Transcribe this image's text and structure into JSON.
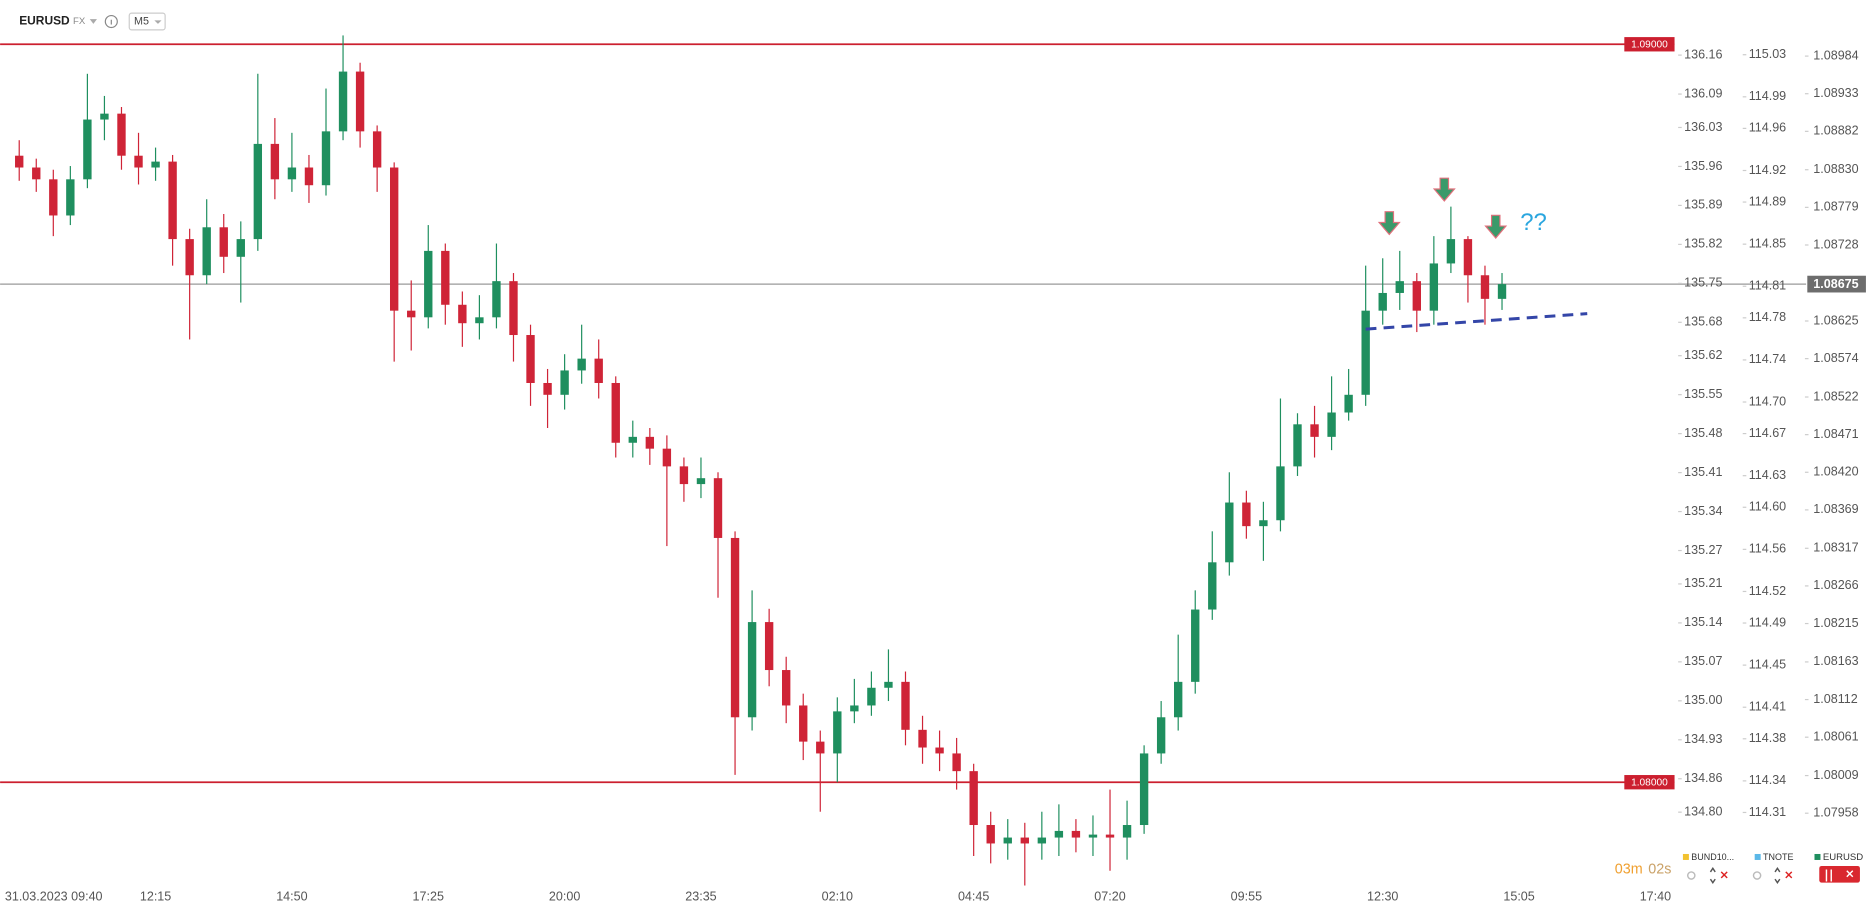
{
  "header": {
    "symbol": "EURUSD",
    "market": "FX",
    "timeframe": "M5"
  },
  "chart_data": {
    "type": "candlestick",
    "categories": [
      "31.03.2023 09:40",
      null,
      null,
      null,
      null,
      null,
      null,
      null,
      "12:15",
      null,
      null,
      null,
      null,
      null,
      null,
      null,
      "14:50",
      null,
      null,
      null,
      null,
      null,
      null,
      null,
      "17:25",
      null,
      null,
      null,
      null,
      null,
      null,
      null,
      "20:00",
      null,
      null,
      null,
      null,
      null,
      null,
      null,
      "23:35",
      null,
      null,
      null,
      null,
      null,
      null,
      null,
      "02:10",
      null,
      null,
      null,
      null,
      null,
      null,
      null,
      "04:45",
      null,
      null,
      null,
      null,
      null,
      null,
      null,
      "07:20",
      null,
      null,
      null,
      null,
      null,
      null,
      null,
      "09:55",
      null,
      null,
      null,
      null,
      null,
      null,
      null,
      "12:30",
      null,
      null,
      null,
      null,
      null,
      null,
      null,
      "15:05",
      null,
      null,
      null,
      null,
      null,
      null,
      null,
      "17:40"
    ],
    "series": [
      {
        "name": "EURUSD",
        "color": "#1f8f5f",
        "up_color": "#1f8f5f",
        "down_color": "#cf2437",
        "open": [
          1.08849,
          1.08833,
          1.08817,
          1.08768,
          1.08817,
          1.08898,
          1.08906,
          1.08849,
          1.08833,
          1.08841,
          1.08736,
          1.08687,
          1.08752,
          1.08712,
          1.08736,
          1.08865,
          1.08817,
          1.08833,
          1.08809,
          1.08882,
          1.08963,
          1.08882,
          1.08833,
          1.08639,
          1.0863,
          1.0872,
          1.08647,
          1.08622,
          1.0863,
          1.08679,
          1.08606,
          1.08541,
          1.08525,
          1.08558,
          1.08574,
          1.08541,
          1.0846,
          1.08468,
          1.08452,
          1.08428,
          1.08404,
          1.08412,
          1.08331,
          1.08088,
          1.08217,
          1.08152,
          1.08104,
          1.08055,
          1.08039,
          1.08096,
          1.08104,
          1.08128,
          1.08136,
          1.08071,
          1.08047,
          1.08039,
          1.08015,
          1.07942,
          1.07917,
          1.07925,
          1.07917,
          1.07925,
          1.07934,
          1.07925,
          1.07929,
          1.07925,
          1.07942,
          1.08039,
          1.08088,
          1.08136,
          1.08234,
          1.08298,
          1.08379,
          1.08347,
          1.08355,
          1.08428,
          1.08485,
          1.08468,
          1.08501,
          1.08525,
          1.08639,
          1.08663,
          1.08679,
          1.08639,
          1.08703,
          1.08736,
          1.08687,
          1.08655,
          null,
          null,
          null,
          null,
          null,
          null,
          null,
          null,
          null
        ],
        "high": [
          1.0887,
          1.08845,
          1.0883,
          1.08835,
          1.0896,
          1.0893,
          1.08915,
          1.0888,
          1.0886,
          1.0885,
          1.0875,
          1.0879,
          1.0877,
          1.0876,
          1.0896,
          1.089,
          1.0888,
          1.0885,
          1.0894,
          1.09012,
          1.08975,
          1.0889,
          1.0884,
          1.0868,
          1.08755,
          1.0873,
          1.08665,
          1.0866,
          1.0873,
          1.0869,
          1.0862,
          1.0856,
          1.0858,
          1.0862,
          1.086,
          1.0855,
          1.0849,
          1.0848,
          1.0847,
          1.0844,
          1.0844,
          1.0842,
          1.0834,
          1.0826,
          1.08235,
          1.0817,
          1.0812,
          1.0807,
          1.08115,
          1.0814,
          1.0815,
          1.0818,
          1.0815,
          1.0809,
          1.0807,
          1.0806,
          1.08025,
          1.0796,
          1.0795,
          1.07945,
          1.0796,
          1.0797,
          1.0795,
          1.07955,
          1.0799,
          1.07975,
          1.0805,
          1.0811,
          1.082,
          1.0826,
          1.0834,
          1.0842,
          1.08395,
          1.0838,
          1.0852,
          1.085,
          1.0851,
          1.0855,
          1.0856,
          1.087,
          1.0871,
          1.0872,
          1.0869,
          1.0874,
          1.0878,
          1.0874,
          1.087,
          1.0869,
          null,
          null,
          null,
          null,
          null,
          null,
          null,
          null,
          null
        ],
        "low": [
          1.08815,
          1.088,
          1.0874,
          1.08755,
          1.08805,
          1.0887,
          1.0883,
          1.0881,
          1.08815,
          1.087,
          1.086,
          1.08675,
          1.0869,
          1.0865,
          1.0872,
          1.0879,
          1.088,
          1.08785,
          1.08795,
          1.0887,
          1.0886,
          1.088,
          1.0857,
          1.08585,
          1.08615,
          1.0862,
          1.0859,
          1.086,
          1.08615,
          1.0857,
          1.0851,
          1.0848,
          1.08505,
          1.0854,
          1.0852,
          1.0844,
          1.0844,
          1.0843,
          1.0832,
          1.0838,
          1.08385,
          1.0825,
          1.0801,
          1.0807,
          1.0813,
          1.0808,
          1.0803,
          1.0796,
          1.08,
          1.0808,
          1.0809,
          1.0811,
          1.0805,
          1.08025,
          1.08015,
          1.0799,
          1.079,
          1.0789,
          1.07895,
          1.0786,
          1.07895,
          1.079,
          1.07905,
          1.079,
          1.0788,
          1.07895,
          1.0793,
          1.08025,
          1.0807,
          1.0812,
          1.0822,
          1.0828,
          1.0833,
          1.083,
          1.0834,
          1.08415,
          1.0844,
          1.0845,
          1.0849,
          1.0851,
          1.0862,
          1.0864,
          1.0861,
          1.0862,
          1.0869,
          1.0865,
          1.0862,
          1.0864,
          null,
          null,
          null,
          null,
          null,
          null,
          null,
          null,
          null
        ],
        "close": [
          1.08833,
          1.08817,
          1.08768,
          1.08817,
          1.08898,
          1.08906,
          1.08849,
          1.08833,
          1.08841,
          1.08736,
          1.08687,
          1.08752,
          1.08712,
          1.08736,
          1.08865,
          1.08817,
          1.08833,
          1.08809,
          1.08882,
          1.08963,
          1.08882,
          1.08833,
          1.08639,
          1.0863,
          1.0872,
          1.08647,
          1.08622,
          1.0863,
          1.08679,
          1.08606,
          1.08541,
          1.08525,
          1.08558,
          1.08574,
          1.08541,
          1.0846,
          1.08468,
          1.08452,
          1.08428,
          1.08404,
          1.08412,
          1.08331,
          1.08088,
          1.08217,
          1.08152,
          1.08104,
          1.08055,
          1.08039,
          1.08096,
          1.08104,
          1.08128,
          1.08136,
          1.08071,
          1.08047,
          1.08039,
          1.08015,
          1.07942,
          1.07917,
          1.07925,
          1.07917,
          1.07925,
          1.07934,
          1.07925,
          1.07929,
          1.07925,
          1.07942,
          1.08039,
          1.08088,
          1.08136,
          1.08234,
          1.08298,
          1.08379,
          1.08347,
          1.08355,
          1.08428,
          1.08485,
          1.08468,
          1.08501,
          1.08525,
          1.08639,
          1.08663,
          1.08679,
          1.08639,
          1.08703,
          1.08736,
          1.08687,
          1.08655,
          1.08675,
          null,
          null,
          null,
          null,
          null,
          null,
          null,
          null,
          null
        ]
      }
    ],
    "ylim": [
      1.078606,
      1.0906
    ],
    "yticks": [
      1.08984,
      1.08933,
      1.08882,
      {
        "value": 1.0883,
        "label": "1.08830"
      },
      1.08779,
      1.08728,
      1.08625,
      1.08574,
      1.08522,
      1.08471,
      {
        "value": 1.0842,
        "label": "1.08420"
      },
      1.08369,
      1.08317,
      1.08266,
      1.08215,
      1.08163,
      1.08112,
      1.08061,
      1.08009,
      1.07958
    ],
    "last_price": 1.08675,
    "levels": [
      {
        "value": 1.09,
        "label": "1.09000"
      },
      {
        "value": 1.08,
        "label": "1.08000"
      }
    ],
    "level_color": "#cc1f2f",
    "trendline": {
      "x": [
        79,
        92
      ],
      "values": [
        1.08614,
        1.08635
      ],
      "color": "#3446a8"
    },
    "annotation": "??",
    "extra_axes": [
      {
        "name": "BUND10...",
        "color": "#f2c230",
        "ylim": [
          134.669,
          136.259
        ],
        "ticks": [
          136.16,
          136.09,
          136.03,
          135.96,
          135.89,
          135.82,
          135.75,
          135.68,
          135.62,
          135.55,
          135.48,
          135.41,
          135.34,
          135.27,
          135.21,
          135.14,
          135.07,
          {
            "value": 135,
            "label": "135.00"
          },
          134.93,
          134.86,
          {
            "value": 134.8,
            "label": "134.80"
          }
        ]
      },
      {
        "name": "TNOTE",
        "color": "#5bb8e8",
        "ylim": [
          114.241,
          115.082
        ],
        "ticks": [
          115.03,
          114.99,
          114.96,
          114.92,
          114.89,
          114.85,
          114.81,
          114.78,
          114.74,
          {
            "value": 114.7,
            "label": "114.70"
          },
          114.67,
          114.63,
          {
            "value": 114.6,
            "label": "114.60"
          },
          114.56,
          114.52,
          114.49,
          114.45,
          114.41,
          114.38,
          114.34,
          114.31
        ]
      }
    ],
    "timer": [
      "03m",
      "02s"
    ]
  }
}
